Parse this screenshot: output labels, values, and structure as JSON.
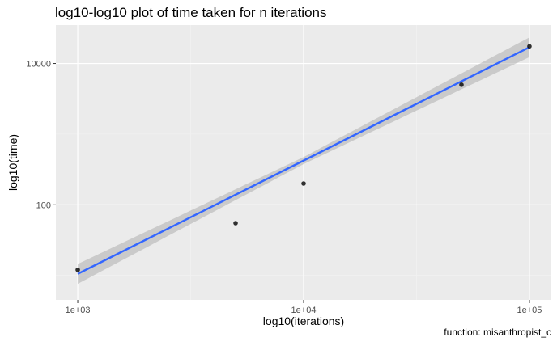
{
  "chart_data": {
    "type": "scatter",
    "title": "log10-log10 plot of time taken for n iterations",
    "xlabel": "log10(iterations)",
    "ylabel": "log10(time)",
    "caption": "function: misanthropist_c",
    "x_scale": "log10",
    "y_scale": "log10",
    "xlim": [
      800,
      125000
    ],
    "ylim": [
      4.5,
      35000
    ],
    "x_ticks": [
      {
        "value": 1000,
        "label": "1e+03"
      },
      {
        "value": 10000,
        "label": "1e+04"
      },
      {
        "value": 100000,
        "label": "1e+05"
      }
    ],
    "y_ticks": [
      {
        "value": 100,
        "label": "100"
      },
      {
        "value": 10000,
        "label": "10000"
      }
    ],
    "points": [
      {
        "x": 1000,
        "y": 12
      },
      {
        "x": 5000,
        "y": 55
      },
      {
        "x": 10000,
        "y": 200
      },
      {
        "x": 50000,
        "y": 5000
      },
      {
        "x": 100000,
        "y": 17500
      }
    ],
    "fit": {
      "method": "lm",
      "x_range": [
        1000,
        100000
      ],
      "y_at_xmin": 10.5,
      "y_at_xmax": 17000,
      "band_half_width_log10": [
        0.14,
        0.05,
        0.14
      ]
    },
    "colors": {
      "panel": "#ebebeb",
      "grid_major": "#ffffff",
      "grid_minor": "#f2f2f2",
      "point": "#000000",
      "fit_line": "#3366ff",
      "ribbon": "#999999"
    },
    "grid": true
  }
}
